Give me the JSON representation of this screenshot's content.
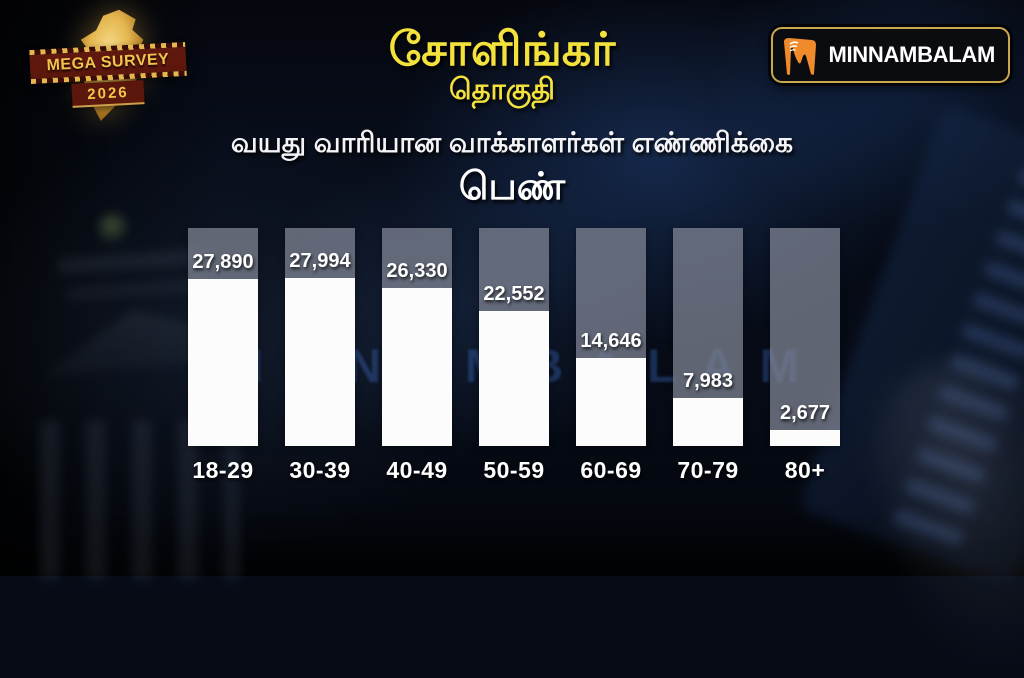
{
  "logo_badge": {
    "line1": "MEGA SURVEY",
    "line2": "2026"
  },
  "header": {
    "constituency": "சோளிங்கர்",
    "constituency_label": "தொகுதி"
  },
  "brand": {
    "name": "MINNAMBALAM"
  },
  "subtitle": "வயது வாரியான வாக்காளர்கள் எண்ணிக்கை",
  "gender_label": "பெண்",
  "watermark": "MINNAMBALAM",
  "colors": {
    "title_yellow": "#f3e13c",
    "bar_fill": "#fcfcfd",
    "bar_track": "#565a64",
    "value_text": "#ffffff",
    "background_navy": "#0a1426",
    "badge_border_gold": "#c9a84e",
    "brand_orange": "#ef8b2b"
  },
  "chart_data": {
    "type": "bar",
    "title": "வயது வாரியான வாக்காளர்கள் எண்ணிக்கை",
    "subtitle": "பெண்",
    "categories": [
      "18-29",
      "30-39",
      "40-49",
      "50-59",
      "60-69",
      "70-79",
      "80+"
    ],
    "values": [
      27890,
      27994,
      26330,
      22552,
      14646,
      7983,
      2677
    ],
    "value_labels": [
      "27,890",
      "27,994",
      "26,330",
      "22,552",
      "14,646",
      "7,983",
      "2,677"
    ],
    "ylim": [
      0,
      36300
    ],
    "grid": false,
    "legend": false,
    "bar_color": "#fcfcfd",
    "track_color": "#565a64",
    "orientation": "vertical"
  }
}
